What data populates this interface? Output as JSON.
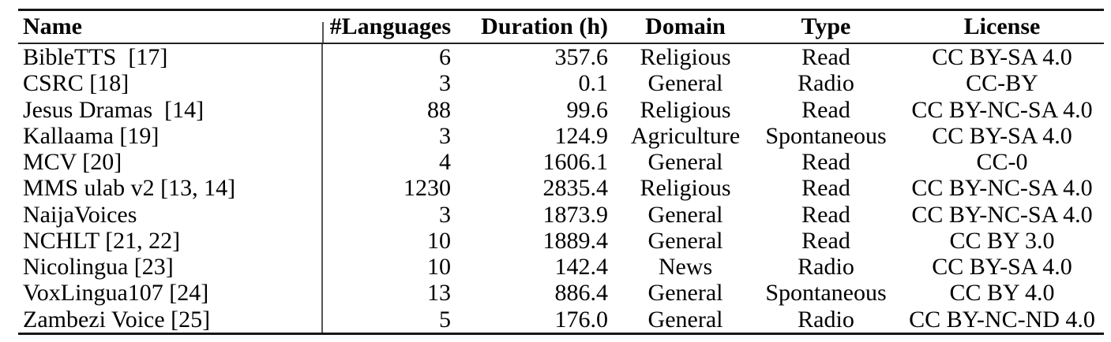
{
  "table": {
    "columns": [
      {
        "label": "Name",
        "align": "left"
      },
      {
        "label": "#Languages",
        "align": "right"
      },
      {
        "label": "Duration (h)",
        "align": "right"
      },
      {
        "label": "Domain",
        "align": "center"
      },
      {
        "label": "Type",
        "align": "center"
      },
      {
        "label": "License",
        "align": "center"
      }
    ],
    "rows": [
      [
        "BibleTTS  [17]",
        "6",
        "357.6",
        "Religious",
        "Read",
        "CC BY-SA 4.0"
      ],
      [
        "CSRC [18]",
        "3",
        "0.1",
        "General",
        "Radio",
        "CC-BY"
      ],
      [
        "Jesus Dramas  [14]",
        "88",
        "99.6",
        "Religious",
        "Read",
        "CC BY-NC-SA 4.0"
      ],
      [
        "Kallaama [19]",
        "3",
        "124.9",
        "Agriculture",
        "Spontaneous",
        "CC BY-SA 4.0"
      ],
      [
        "MCV [20]",
        "4",
        "1606.1",
        "General",
        "Read",
        "CC-0"
      ],
      [
        "MMS ulab v2 [13, 14]",
        "1230",
        "2835.4",
        "Religious",
        "Read",
        "CC BY-NC-SA 4.0"
      ],
      [
        "NaijaVoices",
        "3",
        "1873.9",
        "General",
        "Read",
        "CC BY-NC-SA 4.0"
      ],
      [
        "NCHLT [21, 22]",
        "10",
        "1889.4",
        "General",
        "Read",
        "CC BY 3.0"
      ],
      [
        "Nicolingua [23]",
        "10",
        "142.4",
        "News",
        "Radio",
        "CC BY-SA 4.0"
      ],
      [
        "VoxLingua107 [24]",
        "13",
        "886.4",
        "General",
        "Spontaneous",
        "CC BY 4.0"
      ],
      [
        "Zambezi Voice [25]",
        "5",
        "176.0",
        "General",
        "Radio",
        "CC BY-NC-ND 4.0"
      ]
    ],
    "cell_names": [
      "cell-name",
      "cell-num-languages",
      "cell-duration-hours",
      "cell-domain",
      "cell-type",
      "cell-license"
    ]
  },
  "colors": {
    "background": "#ffffff",
    "text": "#000000",
    "horizontal_rule": "#161616",
    "vertical_rule": "#555555"
  }
}
